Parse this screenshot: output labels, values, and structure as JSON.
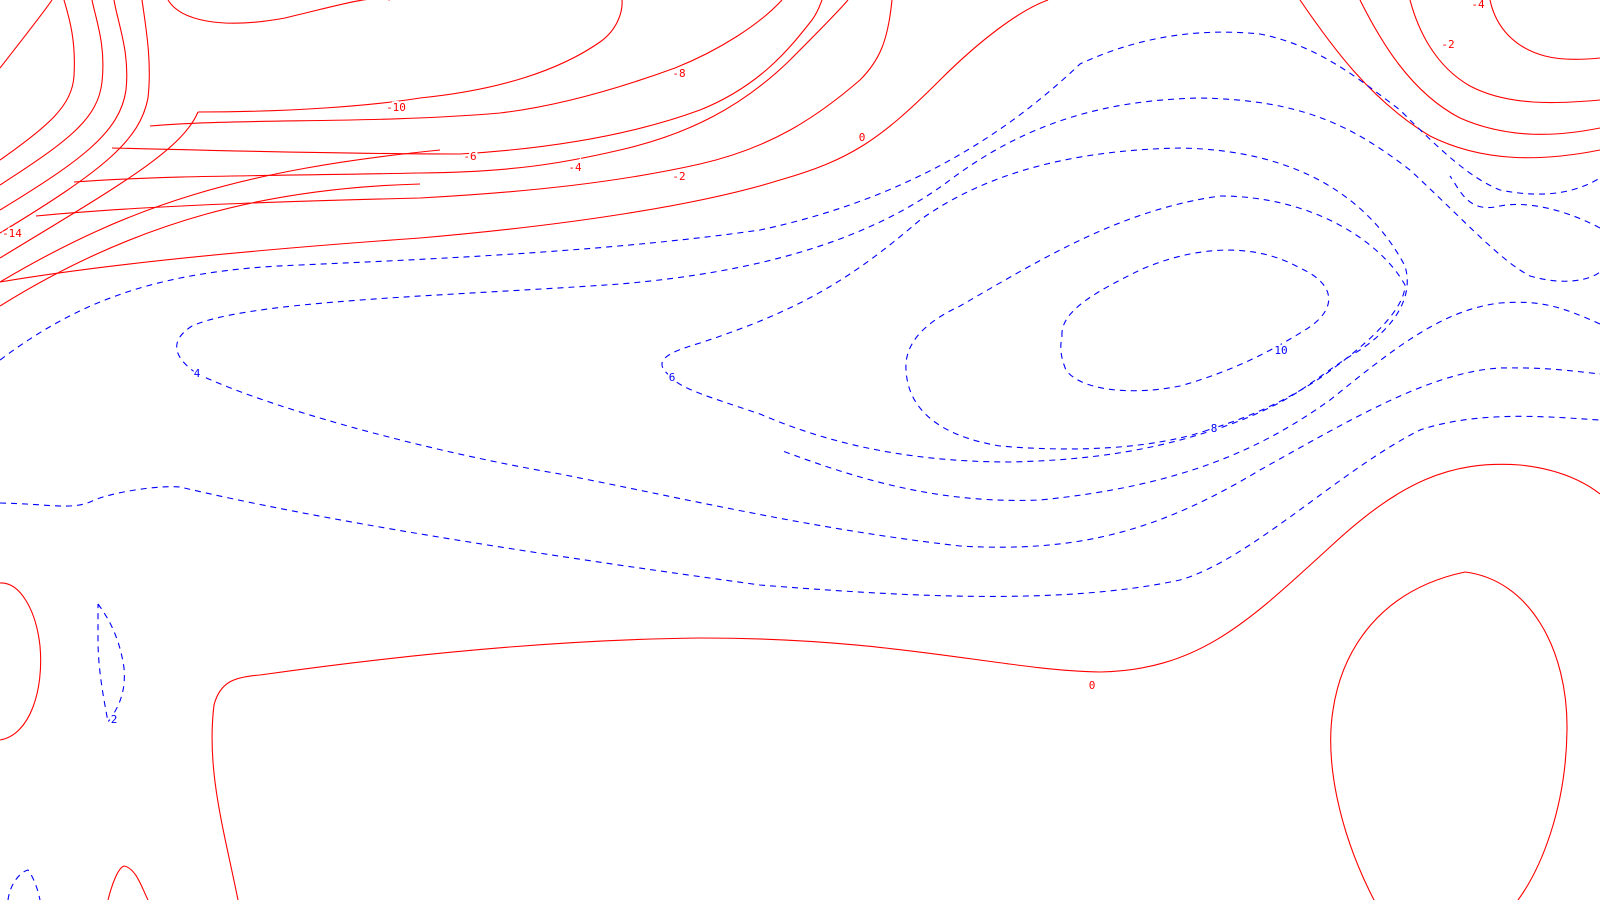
{
  "chart_data": {
    "type": "contour",
    "title": "",
    "xlabel": "",
    "ylabel": "",
    "grid": false,
    "legend": "none",
    "colors": {
      "negative_and_zero": "#ff0000",
      "positive": "#0000ff",
      "background": "#ffffff"
    },
    "line_styles": {
      "negative_and_zero": "solid",
      "positive": "dashed"
    },
    "contour_levels": [
      -14,
      -12,
      -10,
      -8,
      -6,
      -4,
      -2,
      0,
      2,
      4,
      6,
      8,
      10
    ],
    "contour_labels": [
      {
        "text": "-14",
        "level": -14
      },
      {
        "text": "-10",
        "level": -10
      },
      {
        "text": "-8",
        "level": -8
      },
      {
        "text": "-6",
        "level": -6
      },
      {
        "text": "-4",
        "level": -4
      },
      {
        "text": "-2",
        "level": -2
      },
      {
        "text": "0",
        "level": 0
      },
      {
        "text": "0",
        "level": 0
      },
      {
        "text": "4",
        "level": 4
      },
      {
        "text": "6",
        "level": 6
      },
      {
        "text": "8",
        "level": 8
      },
      {
        "text": "10",
        "level": 10
      },
      {
        "text": "2",
        "level": 2
      },
      {
        "text": "-4",
        "level": -4
      },
      {
        "text": "-2",
        "level": -2
      }
    ]
  }
}
